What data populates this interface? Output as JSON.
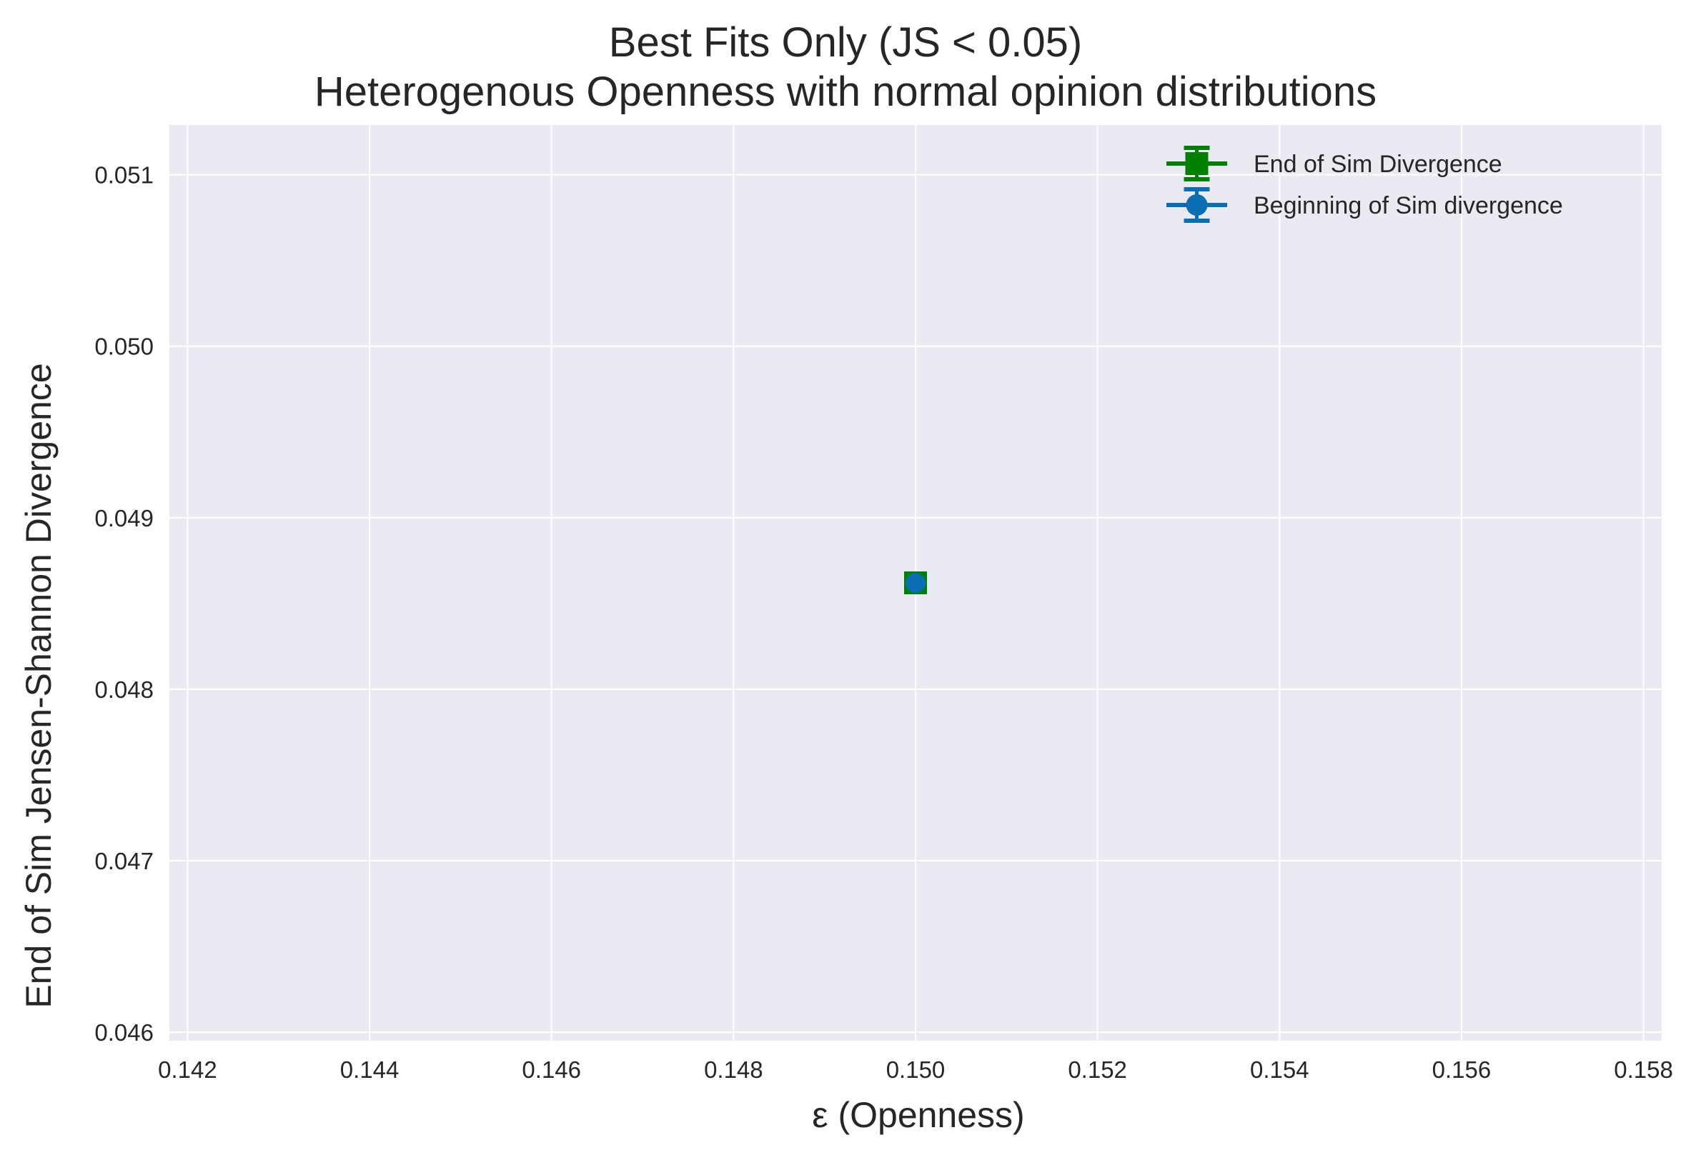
{
  "title_line1": "Best Fits Only (JS < 0.05)",
  "title_line2": "Heterogenous Openness with normal opinion distributions",
  "chart_data": {
    "type": "scatter",
    "title": "Best Fits Only (JS < 0.05)\nHeterogenous Openness with normal opinion distributions",
    "xlabel": "ε (Openness)",
    "ylabel": "End of Sim Jensen-Shannon Divergence",
    "xlim": [
      0.1418,
      0.1582
    ],
    "ylim": [
      0.04595,
      0.05129
    ],
    "xticks": [
      "0.142",
      "0.144",
      "0.146",
      "0.148",
      "0.150",
      "0.152",
      "0.154",
      "0.156",
      "0.158"
    ],
    "yticks": [
      "0.046",
      "0.047",
      "0.048",
      "0.049",
      "0.050",
      "0.051"
    ],
    "grid": true,
    "legend_position": "top-right",
    "series": [
      {
        "name": "End of Sim Divergence",
        "marker": "square",
        "color": "#008000",
        "points": [
          {
            "x": 0.15,
            "y": 0.04862
          }
        ]
      },
      {
        "name": "Beginning of Sim divergence",
        "marker": "circle",
        "color": "#0a6eb4",
        "points": [
          {
            "x": 0.15,
            "y": 0.04862
          }
        ]
      }
    ]
  },
  "colors": {
    "plot_bg": "#eaeaf2",
    "grid": "#ffffff",
    "text": "#262626"
  }
}
